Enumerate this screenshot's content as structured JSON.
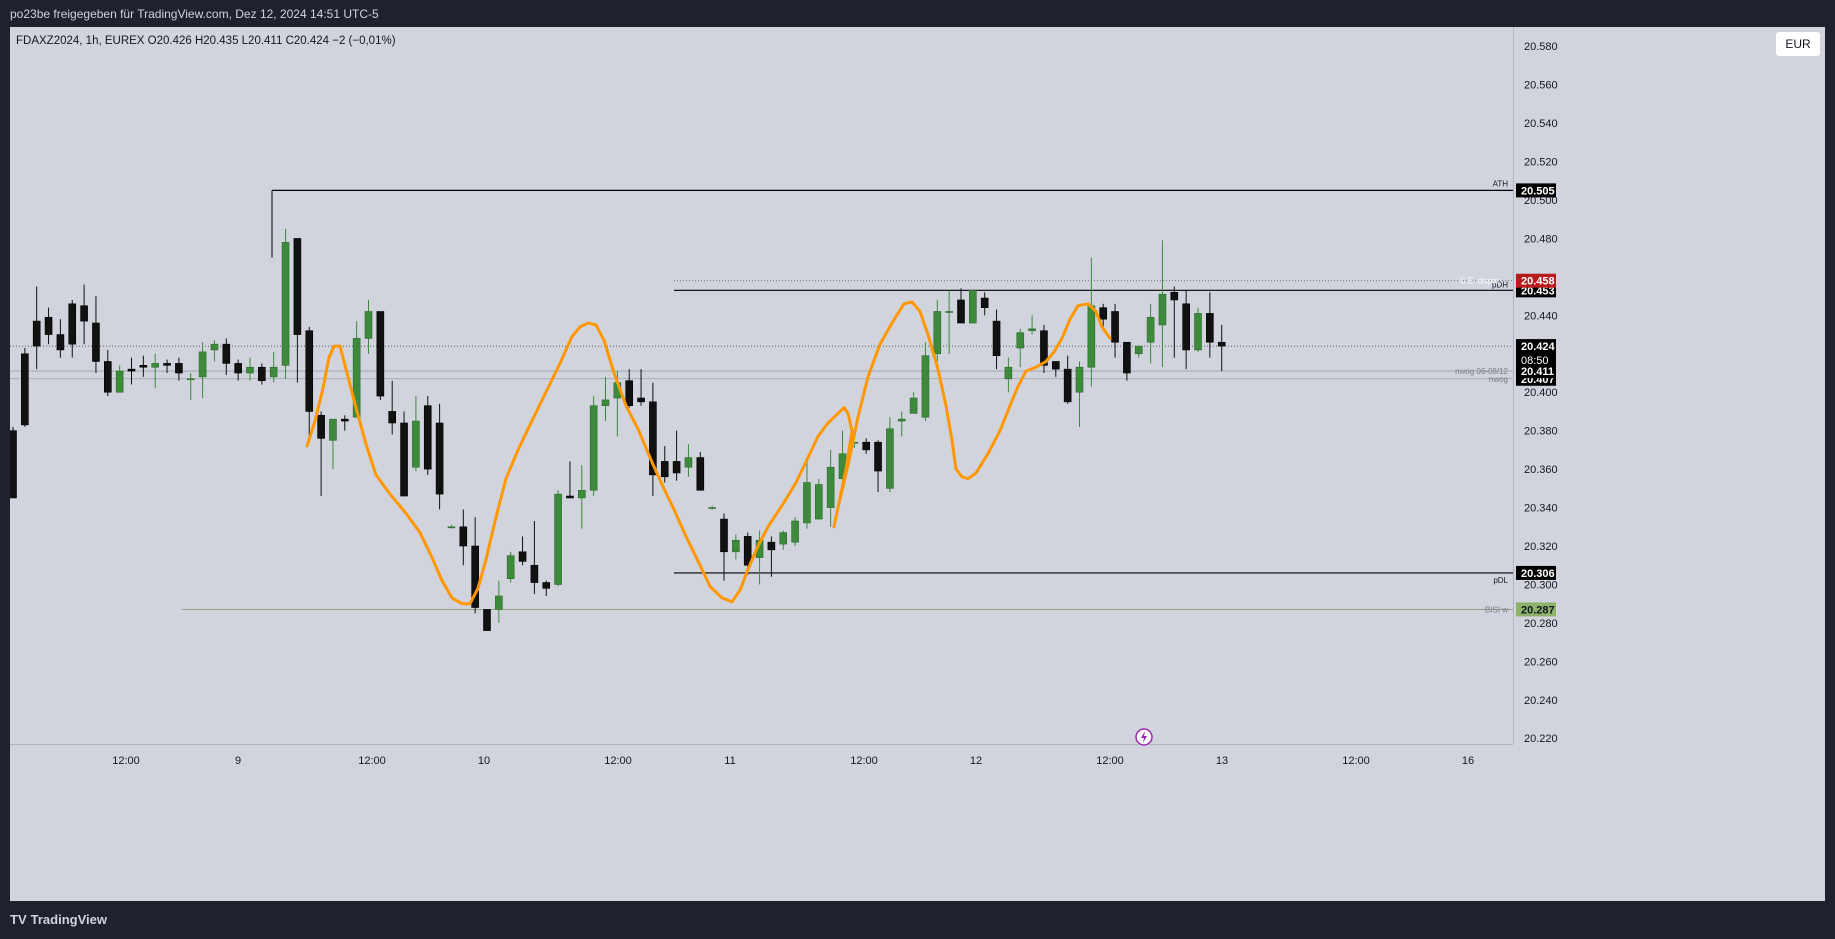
{
  "header": {
    "caption": "po23be freigegeben für TradingView.com, Dez 12, 2024 14:51 UTC-5"
  },
  "symbol": {
    "info": "FDAXZ2024, 1h, EUREX  O20.426  H20.435  L20.411  C20.424  −2 (−0,01%)"
  },
  "currency": "EUR",
  "footer": {
    "brand": "TradingView"
  },
  "colors": {
    "background": "#d1d4dc",
    "bull": "#3d8a3d",
    "bear": "#111111",
    "wick_bull": "#3d8a3d",
    "wick_bear": "#111111",
    "drawing": "#ff9800",
    "level_red": "#b71c1c",
    "level_green": "#8db36a"
  },
  "chart_data": {
    "type": "candlestick",
    "ylim": [
      20.217,
      20.59
    ],
    "y_ticks": [
      "20.580",
      "20.560",
      "20.540",
      "20.520",
      "20.500",
      "20.480",
      "20.440",
      "20.400",
      "20.380",
      "20.360",
      "20.340",
      "20.320",
      "20.300",
      "20.280",
      "20.260",
      "20.240",
      "20.220"
    ],
    "x_ticks": [
      "12:00",
      "9",
      "12:00",
      "10",
      "12:00",
      "11",
      "12:00",
      "12",
      "12:00",
      "13",
      "12:00",
      "16"
    ],
    "levels": [
      {
        "label": "ATH",
        "value": "20.505",
        "style": "solid-black"
      },
      {
        "label": "pDH",
        "value": "20.453",
        "style": "solid-black"
      },
      {
        "label": "C.E. dispar...",
        "value": "20.458",
        "style": "dotted-red"
      },
      {
        "label": "nwog 06-08/12",
        "value": "20.411",
        "style": "thin-gray"
      },
      {
        "label": "nwog",
        "value": "20.407",
        "style": "thin-gray"
      },
      {
        "label": "pDL",
        "value": "20.306",
        "style": "solid-black"
      },
      {
        "label": "BISI w",
        "value": "20.287",
        "style": "thin-green"
      }
    ],
    "last_price": {
      "value": "20.424",
      "countdown": "08:50"
    },
    "candles": [
      [
        20.38,
        20.345,
        20.382,
        20.345
      ],
      [
        20.42,
        20.383,
        20.423,
        20.382
      ],
      [
        20.437,
        20.424,
        20.455,
        20.412
      ],
      [
        20.439,
        20.43,
        20.444,
        20.425
      ],
      [
        20.43,
        20.422,
        20.438,
        20.418
      ],
      [
        20.446,
        20.425,
        20.448,
        20.418
      ],
      [
        20.445,
        20.437,
        20.456,
        20.425
      ],
      [
        20.436,
        20.416,
        20.45,
        20.41
      ],
      [
        20.416,
        20.4,
        20.422,
        20.398
      ],
      [
        20.4,
        20.411,
        20.414,
        20.4
      ],
      [
        20.412,
        20.411,
        20.418,
        20.404
      ],
      [
        20.414,
        20.413,
        20.419,
        20.408
      ],
      [
        20.413,
        20.415,
        20.42,
        20.402
      ],
      [
        20.415,
        20.414,
        20.417,
        20.41
      ],
      [
        20.415,
        20.41,
        20.418,
        20.406
      ],
      [
        20.407,
        20.407,
        20.41,
        20.396
      ],
      [
        20.408,
        20.421,
        20.426,
        20.397
      ],
      [
        20.422,
        20.425,
        20.427,
        20.416
      ],
      [
        20.425,
        20.415,
        20.428,
        20.409
      ],
      [
        20.415,
        20.41,
        20.417,
        20.406
      ],
      [
        20.41,
        20.413,
        20.418,
        20.406
      ],
      [
        20.413,
        20.406,
        20.415,
        20.404
      ],
      [
        20.408,
        20.413,
        20.421,
        20.405
      ],
      [
        20.414,
        20.478,
        20.485,
        20.407
      ],
      [
        20.48,
        20.43,
        20.48,
        20.405
      ],
      [
        20.432,
        20.39,
        20.434,
        20.374
      ],
      [
        20.388,
        20.376,
        20.39,
        20.346
      ],
      [
        20.375,
        20.386,
        20.386,
        20.36
      ],
      [
        20.386,
        20.385,
        20.388,
        20.38
      ],
      [
        20.387,
        20.428,
        20.437,
        20.387
      ],
      [
        20.428,
        20.442,
        20.448,
        20.42
      ],
      [
        20.442,
        20.398,
        20.442,
        20.396
      ],
      [
        20.39,
        20.384,
        20.406,
        20.378
      ],
      [
        20.384,
        20.346,
        20.39,
        20.346
      ],
      [
        20.361,
        20.385,
        20.398,
        20.359
      ],
      [
        20.393,
        20.36,
        20.398,
        20.357
      ],
      [
        20.384,
        20.347,
        20.394,
        20.339
      ],
      [
        20.33,
        20.33,
        20.331,
        20.329
      ],
      [
        20.33,
        20.32,
        20.339,
        20.31
      ],
      [
        20.32,
        20.288,
        20.335,
        20.285
      ],
      [
        20.287,
        20.276,
        20.287,
        20.276
      ],
      [
        20.287,
        20.294,
        20.302,
        20.28
      ],
      [
        20.303,
        20.315,
        20.317,
        20.301
      ],
      [
        20.317,
        20.312,
        20.325,
        20.31
      ],
      [
        20.31,
        20.301,
        20.333,
        20.295
      ],
      [
        20.301,
        20.298,
        20.302,
        20.294
      ],
      [
        20.3,
        20.347,
        20.349,
        20.299
      ],
      [
        20.346,
        20.345,
        20.364,
        20.345
      ],
      [
        20.345,
        20.349,
        20.362,
        20.329
      ],
      [
        20.349,
        20.393,
        20.398,
        20.346
      ],
      [
        20.393,
        20.396,
        20.408,
        20.385
      ],
      [
        20.397,
        20.405,
        20.411,
        20.377
      ],
      [
        20.406,
        20.393,
        20.412,
        20.392
      ],
      [
        20.397,
        20.395,
        20.412,
        20.393
      ],
      [
        20.395,
        20.357,
        20.405,
        20.346
      ],
      [
        20.364,
        20.356,
        20.372,
        20.353
      ],
      [
        20.364,
        20.358,
        20.38,
        20.354
      ],
      [
        20.361,
        20.366,
        20.373,
        20.356
      ],
      [
        20.366,
        20.349,
        20.369,
        20.349
      ],
      [
        20.34,
        20.34,
        20.341,
        20.339
      ],
      [
        20.334,
        20.317,
        20.337,
        20.302
      ],
      [
        20.317,
        20.323,
        20.326,
        20.313
      ],
      [
        20.325,
        20.31,
        20.327,
        20.305
      ],
      [
        20.314,
        20.323,
        20.328,
        20.3
      ],
      [
        20.322,
        20.318,
        20.325,
        20.304
      ],
      [
        20.321,
        20.327,
        20.328,
        20.318
      ],
      [
        20.322,
        20.333,
        20.335,
        20.32
      ],
      [
        20.332,
        20.353,
        20.366,
        20.329
      ],
      [
        20.334,
        20.352,
        20.355,
        20.334
      ],
      [
        20.34,
        20.361,
        20.37,
        20.33
      ],
      [
        20.355,
        20.368,
        20.38,
        20.353
      ],
      [
        20.374,
        20.374,
        20.373,
        20.371
      ],
      [
        20.374,
        20.37,
        20.376,
        20.368
      ],
      [
        20.374,
        20.359,
        20.375,
        20.348
      ],
      [
        20.35,
        20.381,
        20.387,
        20.348
      ],
      [
        20.385,
        20.386,
        20.39,
        20.377
      ],
      [
        20.389,
        20.397,
        20.4,
        20.395
      ],
      [
        20.387,
        20.419,
        20.426,
        20.385
      ],
      [
        20.42,
        20.442,
        20.448,
        20.416
      ],
      [
        20.442,
        20.442,
        20.453,
        20.42
      ],
      [
        20.448,
        20.436,
        20.454,
        20.436
      ],
      [
        20.436,
        20.453,
        20.453,
        20.436
      ],
      [
        20.449,
        20.444,
        20.452,
        20.44
      ],
      [
        20.437,
        20.419,
        20.443,
        20.412
      ],
      [
        20.407,
        20.413,
        20.418,
        20.4
      ],
      [
        20.423,
        20.431,
        20.433,
        20.413
      ],
      [
        20.432,
        20.433,
        20.44,
        20.43
      ],
      [
        20.432,
        20.414,
        20.435,
        20.41
      ],
      [
        20.416,
        20.412,
        20.415,
        20.408
      ],
      [
        20.412,
        20.395,
        20.419,
        20.394
      ],
      [
        20.4,
        20.413,
        20.416,
        20.382
      ],
      [
        20.413,
        20.445,
        20.47,
        20.403
      ],
      [
        20.444,
        20.438,
        20.446,
        20.432
      ],
      [
        20.442,
        20.426,
        20.446,
        20.418
      ],
      [
        20.426,
        20.41,
        20.426,
        20.406
      ],
      [
        20.42,
        20.424,
        20.424,
        20.418
      ],
      [
        20.426,
        20.439,
        20.446,
        20.415
      ],
      [
        20.435,
        20.451,
        20.479,
        20.413
      ],
      [
        20.452,
        20.448,
        20.455,
        20.418
      ],
      [
        20.446,
        20.422,
        20.453,
        20.412
      ],
      [
        20.422,
        20.441,
        20.444,
        20.421
      ],
      [
        20.441,
        20.426,
        20.452,
        20.418
      ],
      [
        20.426,
        20.424,
        20.435,
        20.411
      ]
    ]
  }
}
